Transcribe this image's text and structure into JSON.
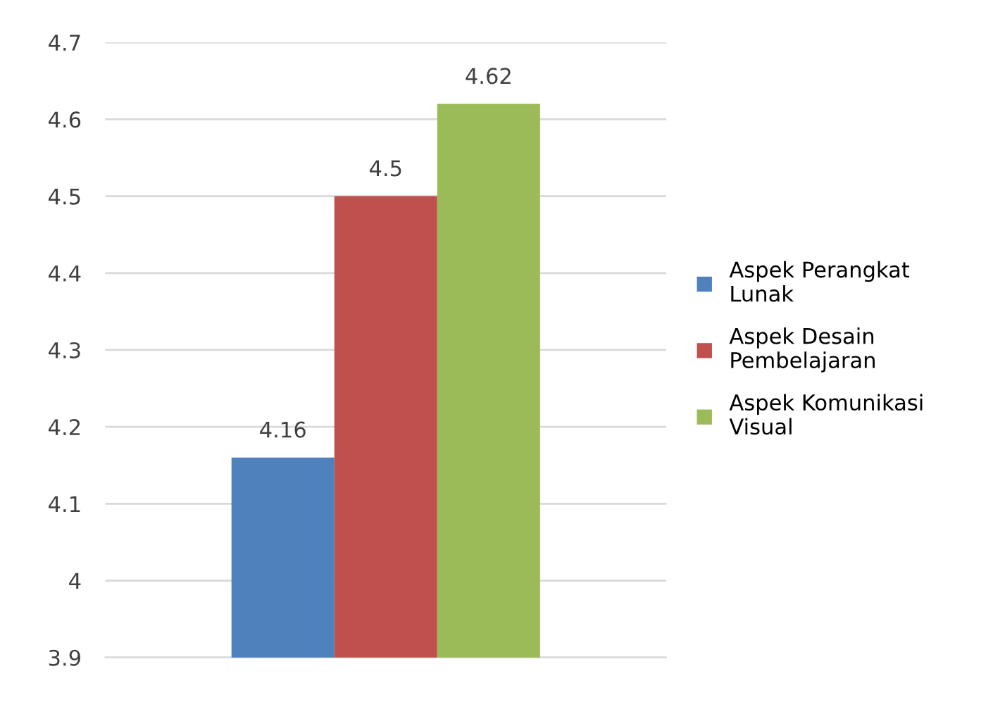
{
  "chart_data": {
    "type": "bar",
    "categories": [
      null
    ],
    "series": [
      {
        "name": "Aspek Perangkat Lunak",
        "color": "#4f81bd",
        "values": [
          4.16
        ]
      },
      {
        "name": "Aspek Desain Pembelajaran",
        "color": "#c0504d",
        "values": [
          4.5
        ]
      },
      {
        "name": "Aspek Komunikasi Visual",
        "color": "#9bbb59",
        "values": [
          4.62
        ]
      }
    ],
    "ylim": [
      3.9,
      4.7
    ],
    "yticks": [
      3.9,
      4,
      4.1,
      4.2,
      4.3,
      4.4,
      4.5,
      4.6,
      4.7
    ],
    "grid": "y",
    "legend": "right",
    "data_labels": true
  }
}
